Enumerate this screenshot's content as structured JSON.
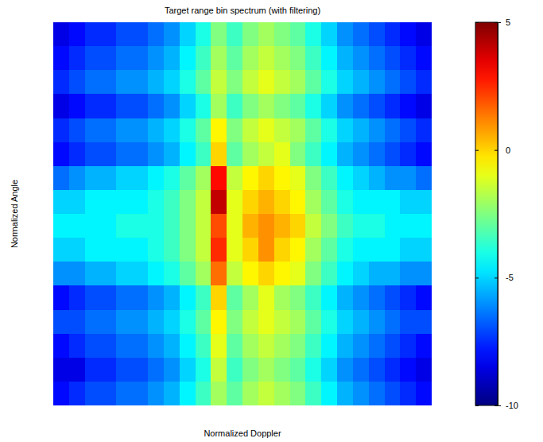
{
  "chart_data": {
    "type": "heatmap",
    "title": "Target range bin spectrum (with filtering)",
    "x_label": "Normalized Doppler",
    "y_label": "Normalized Angle",
    "tick_labels": false,
    "cells": [
      [
        -8.5,
        -8,
        -7.5,
        -7.5,
        -7,
        -7,
        -6.5,
        -6,
        -5,
        -4,
        -2.5,
        -3.5,
        -2.5,
        -2,
        -2.5,
        -3,
        -4,
        -5,
        -6,
        -6.5,
        -7,
        -7.5,
        -8,
        -8.5
      ],
      [
        -8,
        -7.5,
        -7,
        -7,
        -6.5,
        -6.5,
        -6,
        -5.5,
        -4.5,
        -3.5,
        -2,
        -3,
        -2,
        -1.5,
        -2,
        -2.5,
        -3.5,
        -4.5,
        -5.5,
        -6,
        -6.5,
        -7,
        -7.5,
        -8
      ],
      [
        -7.5,
        -7,
        -6.5,
        -6.5,
        -6,
        -6,
        -5.5,
        -5,
        -4,
        -3,
        -1.5,
        -2.5,
        -1.5,
        -1,
        -1.5,
        -2,
        -3,
        -4,
        -5,
        -5.5,
        -6,
        -6.5,
        -7,
        -7.5
      ],
      [
        -8.5,
        -8,
        -7.5,
        -7.5,
        -7,
        -7,
        -6.5,
        -6,
        -5,
        -4,
        -2,
        -3.5,
        -2.5,
        -2,
        -2.5,
        -3,
        -4,
        -5,
        -6,
        -6.5,
        -7,
        -7.5,
        -8,
        -8.5
      ],
      [
        -7.5,
        -7,
        -6.5,
        -6.5,
        -6,
        -6,
        -5.5,
        -5,
        -4,
        -3,
        -0.5,
        -2.5,
        -1.5,
        -1,
        -1.5,
        -2,
        -3,
        -4,
        -5,
        -5.5,
        -6,
        -6.5,
        -7,
        -7.5
      ],
      [
        -8,
        -7.5,
        -7,
        -7,
        -6.5,
        -6.5,
        -6,
        -5.5,
        -4.5,
        -3.5,
        0,
        -3,
        -2,
        -1.5,
        -1,
        -2.5,
        -3.5,
        -4.5,
        -5.5,
        -6,
        -6.5,
        -7,
        -7.5,
        -8
      ],
      [
        -6.5,
        -6,
        -5.5,
        -5.5,
        -5,
        -5,
        -4.5,
        -4,
        -3,
        -2,
        3,
        -1.5,
        -0.5,
        0,
        -0.5,
        -1,
        -2.5,
        -3.5,
        -4.5,
        -5,
        -5.5,
        -6,
        -6,
        -6.5
      ],
      [
        -5,
        -5,
        -4.5,
        -4.5,
        -4.5,
        -4.5,
        -4,
        -3.5,
        -2.5,
        -1.5,
        4,
        -1,
        0,
        0.5,
        0,
        -0.5,
        -2,
        -3,
        -4,
        -4.5,
        -4.5,
        -4.5,
        -5,
        -5
      ],
      [
        -4.5,
        -4.5,
        -4.5,
        -4.5,
        -4,
        -4,
        -4,
        -3.5,
        -2.5,
        -1.5,
        2,
        -1,
        0.5,
        1,
        0.5,
        0,
        -1.5,
        -2.5,
        -3.5,
        -4,
        -4,
        -4.5,
        -4.5,
        -4.5
      ],
      [
        -5,
        -5,
        -4.5,
        -4.5,
        -4.5,
        -4.5,
        -4,
        -3.5,
        -2.5,
        -1.5,
        2.5,
        -1,
        0,
        1,
        0,
        -0.5,
        -2,
        -3,
        -4,
        -4.5,
        -4.5,
        -4.5,
        -5,
        -5
      ],
      [
        -6,
        -6,
        -5.5,
        -5.5,
        -5,
        -5,
        -4.5,
        -4,
        -3,
        -2,
        1.5,
        -1.5,
        -0.5,
        0,
        -0.5,
        -1,
        -2.5,
        -3.5,
        -4.5,
        -5,
        -5.5,
        -5.5,
        -6,
        -6
      ],
      [
        -8,
        -7.5,
        -7,
        -7,
        -6.5,
        -6.5,
        -6,
        -5.5,
        -4.5,
        -3.5,
        0,
        -3,
        -2,
        -1,
        -2,
        -2.5,
        -3.5,
        -4.5,
        -5.5,
        -6,
        -6.5,
        -7,
        -7.5,
        -8
      ],
      [
        -7,
        -7,
        -6.5,
        -6.5,
        -6,
        -6,
        -5.5,
        -5,
        -4,
        -3,
        -0.5,
        -2.5,
        -1.5,
        -1,
        -1.5,
        -2,
        -3,
        -4,
        -5,
        -5.5,
        -6,
        -6.5,
        -7,
        -7
      ],
      [
        -8,
        -7.5,
        -7,
        -7,
        -6.5,
        -6.5,
        -6,
        -5.5,
        -4.5,
        -3.5,
        -1,
        -3,
        -2,
        -1.5,
        -2,
        -2.5,
        -3.5,
        -4.5,
        -5.5,
        -6,
        -6.5,
        -7,
        -7.5,
        -8
      ],
      [
        -8.5,
        -8.5,
        -7.5,
        -7.5,
        -7,
        -7,
        -6.5,
        -6,
        -5,
        -4,
        -1.5,
        -3.5,
        -2.5,
        -2,
        -2.5,
        -3,
        -4,
        -5,
        -6,
        -6.5,
        -7,
        -7.5,
        -8,
        -8.5
      ],
      [
        -8,
        -7.5,
        -7,
        -7,
        -6.5,
        -6.5,
        -6,
        -5.5,
        -4.5,
        -3.5,
        -2,
        -3,
        -2,
        -1.5,
        -2,
        -2.5,
        -3.5,
        -4.5,
        -5.5,
        -6,
        -6.5,
        -7,
        -7.5,
        -8
      ]
    ],
    "colorbar": {
      "range": [
        -10,
        5
      ],
      "ticks": [
        -10,
        -5,
        0,
        5
      ]
    }
  }
}
